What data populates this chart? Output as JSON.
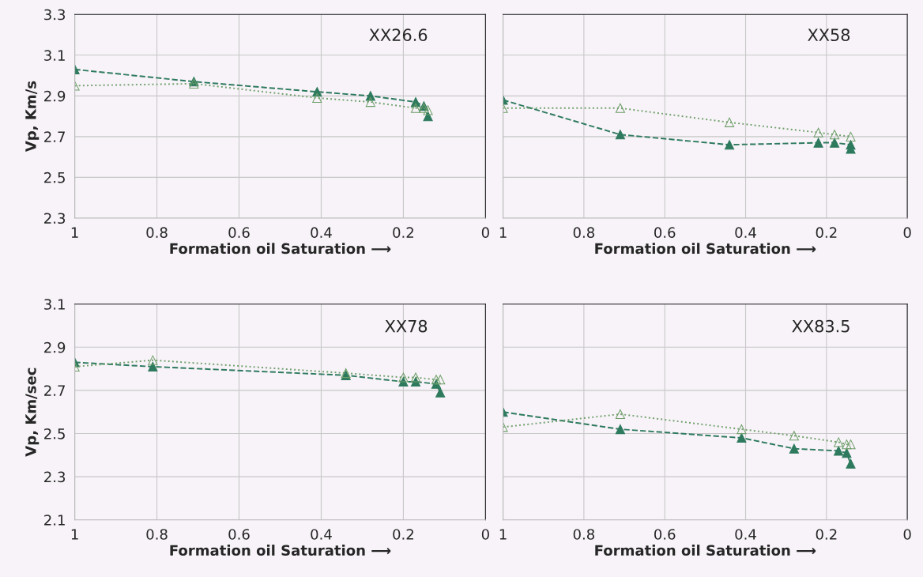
{
  "chart_data": [
    {
      "type": "line",
      "title": "XX26.6",
      "xlabel": "Formation oil Saturation ⟶",
      "ylabel": "Vp, Km/s",
      "xlim": [
        1,
        0
      ],
      "xticks": [
        1,
        0.8,
        0.6,
        0.4,
        0.2,
        0
      ],
      "ylim": [
        2.3,
        3.3
      ],
      "yticks": [
        2.3,
        2.5,
        2.7,
        2.9,
        3.1,
        3.3
      ],
      "grid": true,
      "marker": "triangle",
      "series": [
        {
          "color": "#2e7a5e",
          "line_style": "dashed",
          "x": [
            1,
            0.71,
            0.41,
            0.28,
            0.17,
            0.15,
            0.14
          ],
          "values": [
            3.03,
            2.97,
            2.92,
            2.9,
            2.87,
            2.85,
            2.8
          ]
        },
        {
          "color": "#6f9f6a",
          "line_style": "dotted",
          "x": [
            1,
            0.71,
            0.41,
            0.28,
            0.17,
            0.15,
            0.14
          ],
          "values": [
            2.95,
            2.96,
            2.89,
            2.87,
            2.84,
            2.84,
            2.83
          ]
        }
      ]
    },
    {
      "type": "line",
      "title": "XX58",
      "xlabel": "Formation oil Saturation ⟶",
      "xlim": [
        1,
        0
      ],
      "xticks": [
        1,
        0.8,
        0.6,
        0.4,
        0.2,
        0
      ],
      "ylim": [
        2.3,
        3.3
      ],
      "yticks": [
        2.3,
        2.5,
        2.7,
        2.9,
        3.1,
        3.3
      ],
      "grid": true,
      "marker": "triangle",
      "tick_labels": "x",
      "series": [
        {
          "color": "#2e7a5e",
          "line_style": "dashed",
          "x": [
            1,
            0.71,
            0.44,
            0.22,
            0.18,
            0.14,
            0.14
          ],
          "values": [
            2.88,
            2.71,
            2.66,
            2.67,
            2.67,
            2.66,
            2.64
          ]
        },
        {
          "color": "#6f9f6a",
          "line_style": "dotted",
          "x": [
            1,
            0.71,
            0.44,
            0.22,
            0.18,
            0.14
          ],
          "values": [
            2.84,
            2.84,
            2.77,
            2.72,
            2.71,
            2.7
          ]
        }
      ]
    },
    {
      "type": "line",
      "title": "XX78",
      "xlabel": "Formation oil Saturation ⟶",
      "ylabel": "Vp, Km/sec",
      "xlim": [
        1,
        0
      ],
      "xticks": [
        1,
        0.8,
        0.6,
        0.4,
        0.2,
        0
      ],
      "ylim": [
        2.1,
        3.1
      ],
      "yticks": [
        2.1,
        2.3,
        2.5,
        2.7,
        2.9,
        3.1
      ],
      "grid": true,
      "marker": "triangle",
      "series": [
        {
          "color": "#2e7a5e",
          "line_style": "dashed",
          "x": [
            1,
            0.81,
            0.34,
            0.2,
            0.17,
            0.12,
            0.11
          ],
          "values": [
            2.83,
            2.81,
            2.77,
            2.74,
            2.74,
            2.73,
            2.69
          ]
        },
        {
          "color": "#6f9f6a",
          "line_style": "dotted",
          "x": [
            1,
            0.81,
            0.34,
            0.2,
            0.17,
            0.12,
            0.11
          ],
          "values": [
            2.81,
            2.84,
            2.78,
            2.76,
            2.76,
            2.75,
            2.75
          ]
        }
      ]
    },
    {
      "type": "line",
      "title": "XX83.5",
      "xlabel": "Formation oil Saturation ⟶",
      "xlim": [
        1,
        0
      ],
      "xticks": [
        1,
        0.8,
        0.6,
        0.4,
        0.2,
        0
      ],
      "ylim": [
        2.1,
        3.1
      ],
      "yticks": [
        2.1,
        2.3,
        2.5,
        2.7,
        2.9,
        3.1
      ],
      "grid": true,
      "marker": "triangle",
      "tick_labels": "x",
      "series": [
        {
          "color": "#2e7a5e",
          "line_style": "dashed",
          "x": [
            1,
            0.71,
            0.41,
            0.28,
            0.17,
            0.15,
            0.14
          ],
          "values": [
            2.6,
            2.52,
            2.48,
            2.43,
            2.42,
            2.41,
            2.36
          ]
        },
        {
          "color": "#6f9f6a",
          "line_style": "dotted",
          "x": [
            1,
            0.71,
            0.41,
            0.28,
            0.17,
            0.15,
            0.14
          ],
          "values": [
            2.53,
            2.59,
            2.52,
            2.49,
            2.46,
            2.45,
            2.45
          ]
        }
      ]
    }
  ]
}
